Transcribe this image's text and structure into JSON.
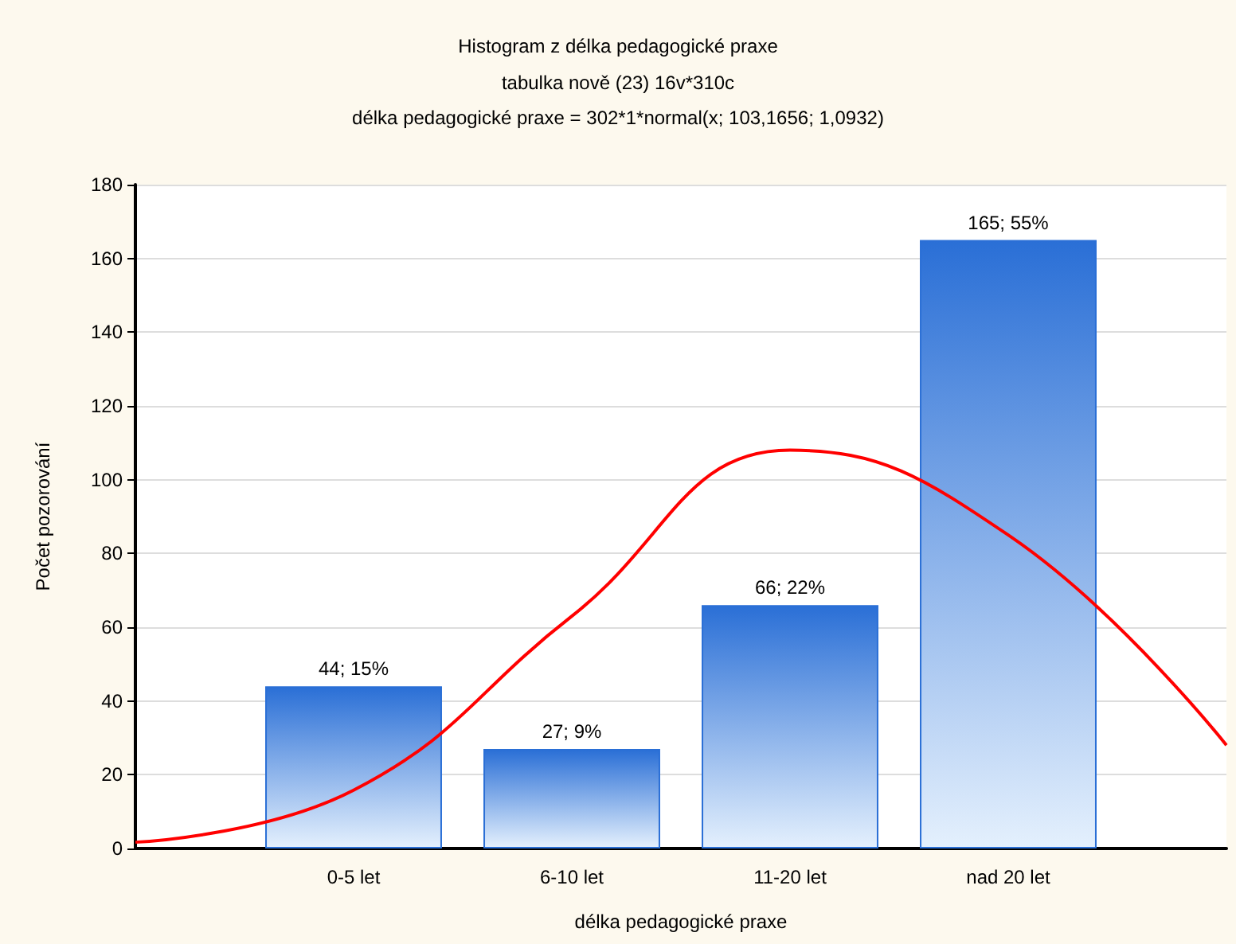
{
  "chart_data": {
    "type": "bar",
    "title": "Histogram z délka pedagogické praxe",
    "subtitle": "tabulka nově (23) 16v*310c\ndélka pedagogické praxe = 302*1*normal(x; 103,1656; 1,0932)",
    "xlabel": "délka pedagogické praxe",
    "ylabel": "Počet pozorování",
    "categories": [
      null,
      "0-5 let",
      "6-10 let",
      "11-20 let",
      "nad 20 let",
      null
    ],
    "series": [
      {
        "color": "#2a6fd6",
        "values": [
          null,
          44,
          27,
          66,
          165,
          null
        ],
        "value_labels": [
          null,
          "44; 15%",
          "27; 9%",
          "66; 22%",
          "165; 55%",
          null
        ]
      },
      {
        "type": "line",
        "color": "#ff0000",
        "values": [
          1.7,
          15.8,
          63,
          108,
          85,
          28
        ]
      }
    ],
    "ylim": [
      0,
      180
    ],
    "yticks": [
      0,
      20,
      40,
      60,
      80,
      100,
      120,
      140,
      160,
      180
    ],
    "grid": "y",
    "marker": "none",
    "line_style": "solid"
  }
}
